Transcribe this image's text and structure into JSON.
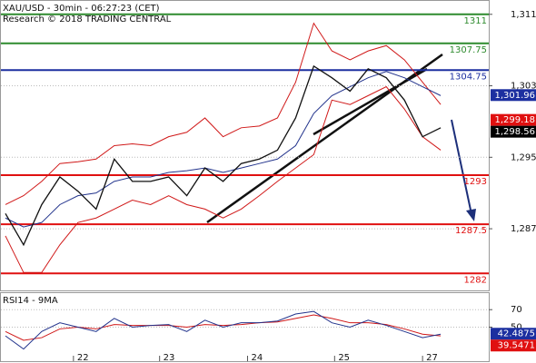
{
  "chart_data": [
    {
      "type": "line",
      "title": "XAU/USD - 30min - 06:27:23 (CET)",
      "subtitle": "Research © 2018 TRADING CENTRAL",
      "x": [
        0,
        10,
        20,
        30,
        40,
        50,
        60,
        70,
        80,
        90,
        100,
        110,
        120,
        130,
        140,
        150,
        160,
        170,
        180,
        190,
        200,
        210,
        220,
        230,
        240
      ],
      "xlim": [
        -2.5,
        266.5
      ],
      "xticks": [
        {
          "value": 37.5,
          "label": "22"
        },
        {
          "value": 85,
          "label": "23"
        },
        {
          "value": 133.5,
          "label": "24"
        },
        {
          "value": 181.5,
          "label": "25"
        },
        {
          "value": 230,
          "label": "27"
        }
      ],
      "ylim": [
        1280.1,
        1312.5
      ],
      "yticks": [
        {
          "value": 1311,
          "label": "1,311"
        },
        {
          "value": 1303,
          "label": "1,303"
        },
        {
          "value": 1295,
          "label": "1,295"
        },
        {
          "value": 1287,
          "label": "1,287"
        }
      ],
      "series": [
        {
          "color": "#d01818",
          "values": [
            1289.7,
            1290.7,
            1292.3,
            1294.3,
            1294.5,
            1294.8,
            1296.3,
            1296.5,
            1296.3,
            1297.3,
            1297.8,
            1299.4,
            1297.3,
            1298.3,
            1298.5,
            1299.4,
            1303.4,
            1310,
            1306.9,
            1305.9,
            1306.9,
            1307.5,
            1305.9,
            1303.4,
            1300.9
          ]
        },
        {
          "color": "#d01818",
          "values": [
            1286.2,
            1282.1,
            1282.1,
            1285.2,
            1287.7,
            1288.2,
            1289.2,
            1290.2,
            1289.7,
            1290.7,
            1289.7,
            1289.2,
            1288.2,
            1289.2,
            1290.7,
            1292.3,
            1293.8,
            1295.3,
            1301.4,
            1300.9,
            1301.9,
            1302.9,
            1300.4,
            1297.3,
            1295.8
          ]
        },
        {
          "color": "#22338c",
          "values": [
            1288.2,
            1287.2,
            1287.7,
            1289.7,
            1290.7,
            1291.0,
            1292.3,
            1292.8,
            1292.8,
            1293.3,
            1293.5,
            1293.8,
            1293.3,
            1293.8,
            1294.3,
            1294.8,
            1296.3,
            1299.9,
            1301.9,
            1302.9,
            1303.9,
            1304.6,
            1303.9,
            1302.9,
            1301.9
          ]
        },
        {
          "color": "#111111",
          "values": [
            1288.7,
            1285.2,
            1289.7,
            1292.8,
            1291.2,
            1289.2,
            1294.8,
            1292.3,
            1292.3,
            1292.8,
            1290.7,
            1293.8,
            1292.3,
            1294.3,
            1294.8,
            1295.8,
            1299.4,
            1305.2,
            1303.9,
            1302.4,
            1304.9,
            1303.9,
            1301.4,
            1297.3,
            1298.3
          ]
        }
      ],
      "levels": [
        {
          "value": 1311,
          "color": "#2e8b2e"
        },
        {
          "value": 1307.75,
          "color": "#2e8b2e"
        },
        {
          "value": 1304.75,
          "color": "#1c2fa0"
        },
        {
          "value": 1293,
          "color": "#e01010"
        },
        {
          "value": 1287.5,
          "color": "#e01010"
        },
        {
          "value": 1282,
          "color": "#e01010"
        }
      ],
      "price_tags": [
        {
          "value": 1301.96,
          "label": "1,301.96",
          "color": "#1c2fa0"
        },
        {
          "value": 1299.18,
          "label": "1,299.18",
          "color": "#e01010"
        },
        {
          "value": 1298.56,
          "label": "1,298.56",
          "color": "#000000"
        }
      ]
    },
    {
      "type": "line",
      "title": "RSI14 - 9MA",
      "x": [
        0,
        10,
        20,
        30,
        40,
        50,
        60,
        70,
        80,
        90,
        100,
        110,
        120,
        130,
        140,
        150,
        160,
        170,
        180,
        190,
        200,
        210,
        220,
        230,
        240
      ],
      "xlim": [
        -2.5,
        266.5
      ],
      "ylim": [
        11.1,
        88.9
      ],
      "yticks": [
        70,
        50
      ],
      "series": [
        {
          "color": "#d01818",
          "values": [
            45,
            35,
            38,
            48,
            50,
            48,
            53,
            52,
            52,
            52,
            50,
            53,
            52,
            53,
            55,
            56,
            60,
            64,
            60,
            55,
            55,
            53,
            48,
            42,
            40
          ]
        },
        {
          "color": "#22338c",
          "values": [
            40,
            25,
            45,
            55,
            50,
            45,
            60,
            50,
            52,
            53,
            45,
            58,
            50,
            55,
            55,
            57,
            65,
            68,
            55,
            50,
            58,
            52,
            45,
            38,
            42
          ]
        }
      ],
      "price_tags": [
        {
          "value": 42.4875,
          "label": "42.4875",
          "color": "#1c2fa0"
        },
        {
          "value": 39.5471,
          "label": "39.5471",
          "color": "#e01010"
        }
      ]
    }
  ]
}
